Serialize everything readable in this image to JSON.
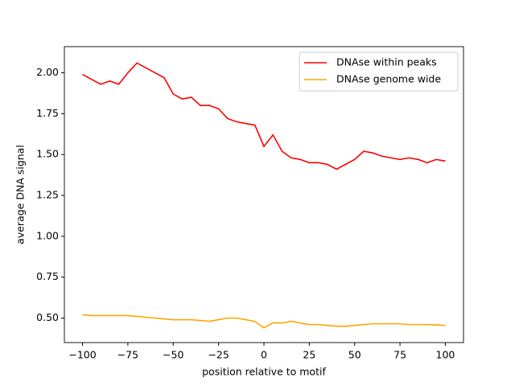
{
  "chart_data": {
    "type": "line",
    "xlabel": "position relative to motif",
    "ylabel": "average DNA signal",
    "x": [
      -100,
      -95,
      -90,
      -85,
      -80,
      -75,
      -70,
      -65,
      -60,
      -55,
      -50,
      -45,
      -40,
      -35,
      -30,
      -25,
      -20,
      -15,
      -10,
      -5,
      0,
      5,
      10,
      15,
      20,
      25,
      30,
      35,
      40,
      45,
      50,
      55,
      60,
      65,
      70,
      75,
      80,
      85,
      90,
      95,
      100
    ],
    "series": [
      {
        "name": "DNAse within peaks",
        "color": "#ff0000",
        "values": [
          1.99,
          1.96,
          1.93,
          1.95,
          1.93,
          2.0,
          2.06,
          2.03,
          2.0,
          1.97,
          1.87,
          1.84,
          1.85,
          1.8,
          1.8,
          1.78,
          1.72,
          1.7,
          1.69,
          1.68,
          1.55,
          1.62,
          1.52,
          1.48,
          1.47,
          1.45,
          1.45,
          1.44,
          1.41,
          1.44,
          1.47,
          1.52,
          1.51,
          1.49,
          1.48,
          1.47,
          1.48,
          1.47,
          1.45,
          1.47,
          1.46
        ]
      },
      {
        "name": "DNAse genome wide",
        "color": "#ffa500",
        "values": [
          0.52,
          0.515,
          0.515,
          0.515,
          0.515,
          0.515,
          0.51,
          0.505,
          0.5,
          0.495,
          0.49,
          0.49,
          0.49,
          0.485,
          0.48,
          0.49,
          0.5,
          0.5,
          0.49,
          0.48,
          0.44,
          0.47,
          0.47,
          0.48,
          0.47,
          0.46,
          0.46,
          0.455,
          0.45,
          0.45,
          0.455,
          0.46,
          0.465,
          0.465,
          0.465,
          0.465,
          0.46,
          0.46,
          0.46,
          0.458,
          0.455
        ]
      }
    ],
    "xlim": [
      -110,
      110
    ],
    "ylim": [
      0.35,
      2.16
    ],
    "xticks": [
      {
        "value": -100,
        "label": "−100"
      },
      {
        "value": -75,
        "label": "−75"
      },
      {
        "value": -50,
        "label": "−50"
      },
      {
        "value": -25,
        "label": "−25"
      },
      0,
      25,
      50,
      75,
      100
    ],
    "yticks": [
      {
        "value": 0.5,
        "label": "0.50"
      },
      {
        "value": 0.75,
        "label": "0.75"
      },
      {
        "value": 1.0,
        "label": "1.00"
      },
      {
        "value": 1.25,
        "label": "1.25"
      },
      {
        "value": 1.5,
        "label": "1.50"
      },
      {
        "value": 1.75,
        "label": "1.75"
      },
      {
        "value": 2.0,
        "label": "2.00"
      }
    ],
    "legend": "upper right"
  }
}
